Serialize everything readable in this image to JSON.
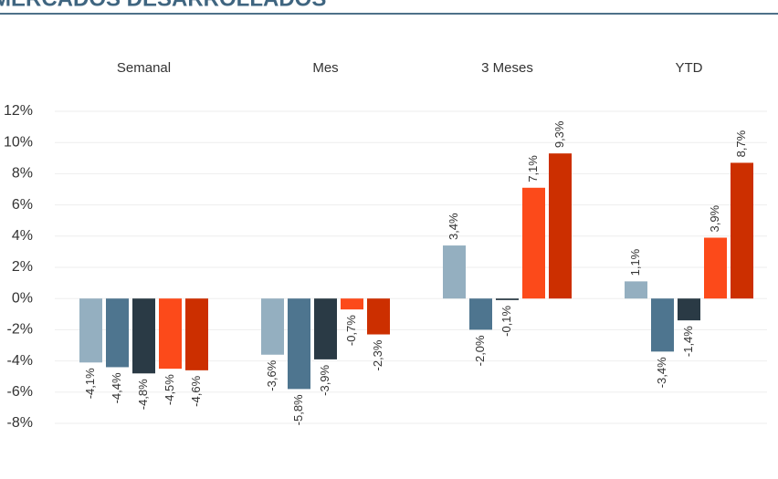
{
  "chart_data": {
    "type": "bar",
    "title": "MERCADOS DESARROLLADOS",
    "categories": [
      "Semanal",
      "Mes",
      "3 Meses",
      "YTD"
    ],
    "series": [
      {
        "color": "#94afc0",
        "values": [
          -4.1,
          -3.6,
          3.4,
          1.1
        ],
        "value_labels": [
          "-4,1%",
          "-3,6%",
          "3,4%",
          "1,1%"
        ]
      },
      {
        "color": "#4e758f",
        "values": [
          -4.4,
          -5.8,
          -2.0,
          -3.4
        ],
        "value_labels": [
          "-4,4%",
          "-5,8%",
          "-2,0%",
          "-3,4%"
        ]
      },
      {
        "color": "#2a3a45",
        "values": [
          -4.8,
          -3.9,
          -0.1,
          -1.4
        ],
        "value_labels": [
          "-4,8%",
          "-3,9%",
          "-0,1%",
          "-1,4%"
        ]
      },
      {
        "color": "#fc4a1a",
        "values": [
          -4.5,
          -0.7,
          7.1,
          3.9
        ],
        "value_labels": [
          "-4,5%",
          "-0,7%",
          "7,1%",
          "3,9%"
        ]
      },
      {
        "color": "#cc2f00",
        "values": [
          -4.6,
          -2.3,
          9.3,
          8.7
        ],
        "value_labels": [
          "-4,6%",
          "-2,3%",
          "9,3%",
          "8,7%"
        ]
      }
    ],
    "ylim": [
      -8,
      12
    ],
    "yticks": [
      {
        "value": -8,
        "label": "-8%"
      },
      {
        "value": -6,
        "label": "-6%"
      },
      {
        "value": -4,
        "label": "-4%"
      },
      {
        "value": -2,
        "label": "-2%"
      },
      {
        "value": 0,
        "label": "0%"
      },
      {
        "value": 2,
        "label": "2%"
      },
      {
        "value": 4,
        "label": "4%"
      },
      {
        "value": 6,
        "label": "6%"
      },
      {
        "value": 8,
        "label": "8%"
      },
      {
        "value": 10,
        "label": "10%"
      },
      {
        "value": 12,
        "label": "12%"
      }
    ],
    "grid": true
  }
}
